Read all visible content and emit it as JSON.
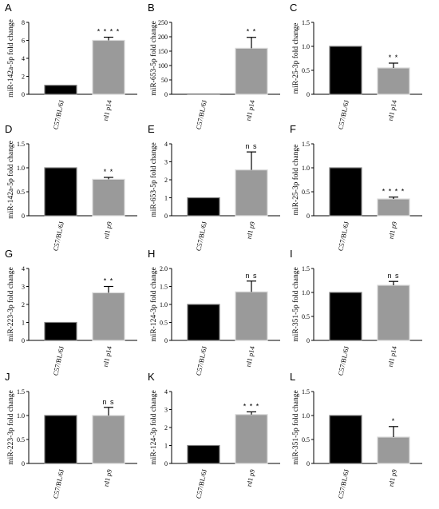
{
  "colors": {
    "wild_type": "#000000",
    "rd1": "#9a9a9a",
    "axis": "#000000"
  },
  "chart_data": [
    {
      "panel": "A",
      "type": "bar",
      "ylabel": "miR-142a-5p fold change",
      "categories": [
        "C57/BL/6J",
        "rd1 p14"
      ],
      "values": [
        1.0,
        6.0
      ],
      "errors": [
        0.05,
        0.35
      ],
      "significance": [
        "",
        "* * * *"
      ],
      "ylim": [
        0,
        8
      ],
      "yticks": [
        "0",
        "2",
        "4",
        "6",
        "8"
      ]
    },
    {
      "panel": "B",
      "type": "bar",
      "ylabel": "miR-653-5p fold change",
      "categories": [
        "C57/BL/6J",
        "rd1 p14"
      ],
      "values": [
        1.0,
        160
      ],
      "errors": [
        0.2,
        38
      ],
      "significance": [
        "",
        "* *"
      ],
      "ylim": [
        0,
        250
      ],
      "yticks": [
        "0",
        "50",
        "100",
        "150",
        "200",
        "250"
      ]
    },
    {
      "panel": "C",
      "type": "bar",
      "ylabel": "miR-25-3p fold change",
      "categories": [
        "C57/BL/6J",
        "rd1 p14"
      ],
      "values": [
        1.0,
        0.55
      ],
      "errors": [
        0.01,
        0.1
      ],
      "significance": [
        "",
        "* *"
      ],
      "ylim": [
        0,
        1.5
      ],
      "yticks": [
        "0",
        "0.5",
        "1.0",
        "1.5"
      ]
    },
    {
      "panel": "D",
      "type": "bar",
      "ylabel": "miR-142a-5p fold change",
      "categories": [
        "C57/BL/6J",
        "rd1 p9"
      ],
      "values": [
        1.0,
        0.76
      ],
      "errors": [
        0.01,
        0.04
      ],
      "significance": [
        "",
        "* *"
      ],
      "ylim": [
        0,
        1.5
      ],
      "yticks": [
        "0",
        "0.5",
        "1.0",
        "1.5"
      ]
    },
    {
      "panel": "E",
      "type": "bar",
      "ylabel": "miR-653-5p fold change",
      "categories": [
        "C57/BL/6J",
        "rd1 p9"
      ],
      "values": [
        1.0,
        2.55
      ],
      "errors": [
        0.02,
        1.0
      ],
      "significance": [
        "",
        "n s"
      ],
      "ylim": [
        0,
        4
      ],
      "yticks": [
        "0",
        "1",
        "2",
        "3",
        "4"
      ]
    },
    {
      "panel": "F",
      "type": "bar",
      "ylabel": "miR-25-3p fold change",
      "categories": [
        "C57/BL/6J",
        "rd1 p9"
      ],
      "values": [
        1.0,
        0.35
      ],
      "errors": [
        0.01,
        0.04
      ],
      "significance": [
        "",
        "* * * *"
      ],
      "ylim": [
        0,
        1.5
      ],
      "yticks": [
        "0",
        "0.5",
        "1.0",
        "1.5"
      ]
    },
    {
      "panel": "G",
      "type": "bar",
      "ylabel": "miR-223-3p fold change",
      "categories": [
        "C57/BL/6J",
        "rd1 p14"
      ],
      "values": [
        1.0,
        2.65
      ],
      "errors": [
        0.02,
        0.35
      ],
      "significance": [
        "",
        "* *"
      ],
      "ylim": [
        0,
        4
      ],
      "yticks": [
        "0",
        "1",
        "2",
        "3",
        "4"
      ]
    },
    {
      "panel": "H",
      "type": "bar",
      "ylabel": "miR-124-3p fold change",
      "categories": [
        "C57/BL/6J",
        "rd1 p14"
      ],
      "values": [
        1.0,
        1.35
      ],
      "errors": [
        0.02,
        0.3
      ],
      "significance": [
        "",
        "n s"
      ],
      "ylim": [
        0,
        2.0
      ],
      "yticks": [
        "0",
        "0.5",
        "1.0",
        "1.5",
        "2.0"
      ]
    },
    {
      "panel": "I",
      "type": "bar",
      "ylabel": "miR-351-5p fold change",
      "categories": [
        "C57/BL/6J",
        "rd1 p14"
      ],
      "values": [
        1.0,
        1.15
      ],
      "errors": [
        0.01,
        0.08
      ],
      "significance": [
        "",
        "n s"
      ],
      "ylim": [
        0,
        1.5
      ],
      "yticks": [
        "0",
        "0.5",
        "1.0",
        "1.5"
      ]
    },
    {
      "panel": "J",
      "type": "bar",
      "ylabel": "miR-223-3p fold change",
      "categories": [
        "C57/BL/6J",
        "rd1 p9"
      ],
      "values": [
        1.0,
        1.0
      ],
      "errors": [
        0.01,
        0.17
      ],
      "significance": [
        "",
        "n s"
      ],
      "ylim": [
        0,
        1.5
      ],
      "yticks": [
        "0",
        "0.5",
        "1.0",
        "1.5"
      ]
    },
    {
      "panel": "K",
      "type": "bar",
      "ylabel": "miR-124-3p fold change",
      "categories": [
        "C57/BL/6J",
        "rd1 p9"
      ],
      "values": [
        1.0,
        2.72
      ],
      "errors": [
        0.02,
        0.15
      ],
      "significance": [
        "",
        "* * *"
      ],
      "ylim": [
        0,
        4
      ],
      "yticks": [
        "0",
        "1",
        "2",
        "3",
        "4"
      ]
    },
    {
      "panel": "L",
      "type": "bar",
      "ylabel": "miR-351-5p fold change",
      "categories": [
        "C57/BL/6J",
        "rd1 p9"
      ],
      "values": [
        1.0,
        0.55
      ],
      "errors": [
        0.01,
        0.22
      ],
      "significance": [
        "",
        "*"
      ],
      "ylim": [
        0,
        1.5
      ],
      "yticks": [
        "0",
        "0.5",
        "1.0",
        "1.5"
      ]
    }
  ]
}
